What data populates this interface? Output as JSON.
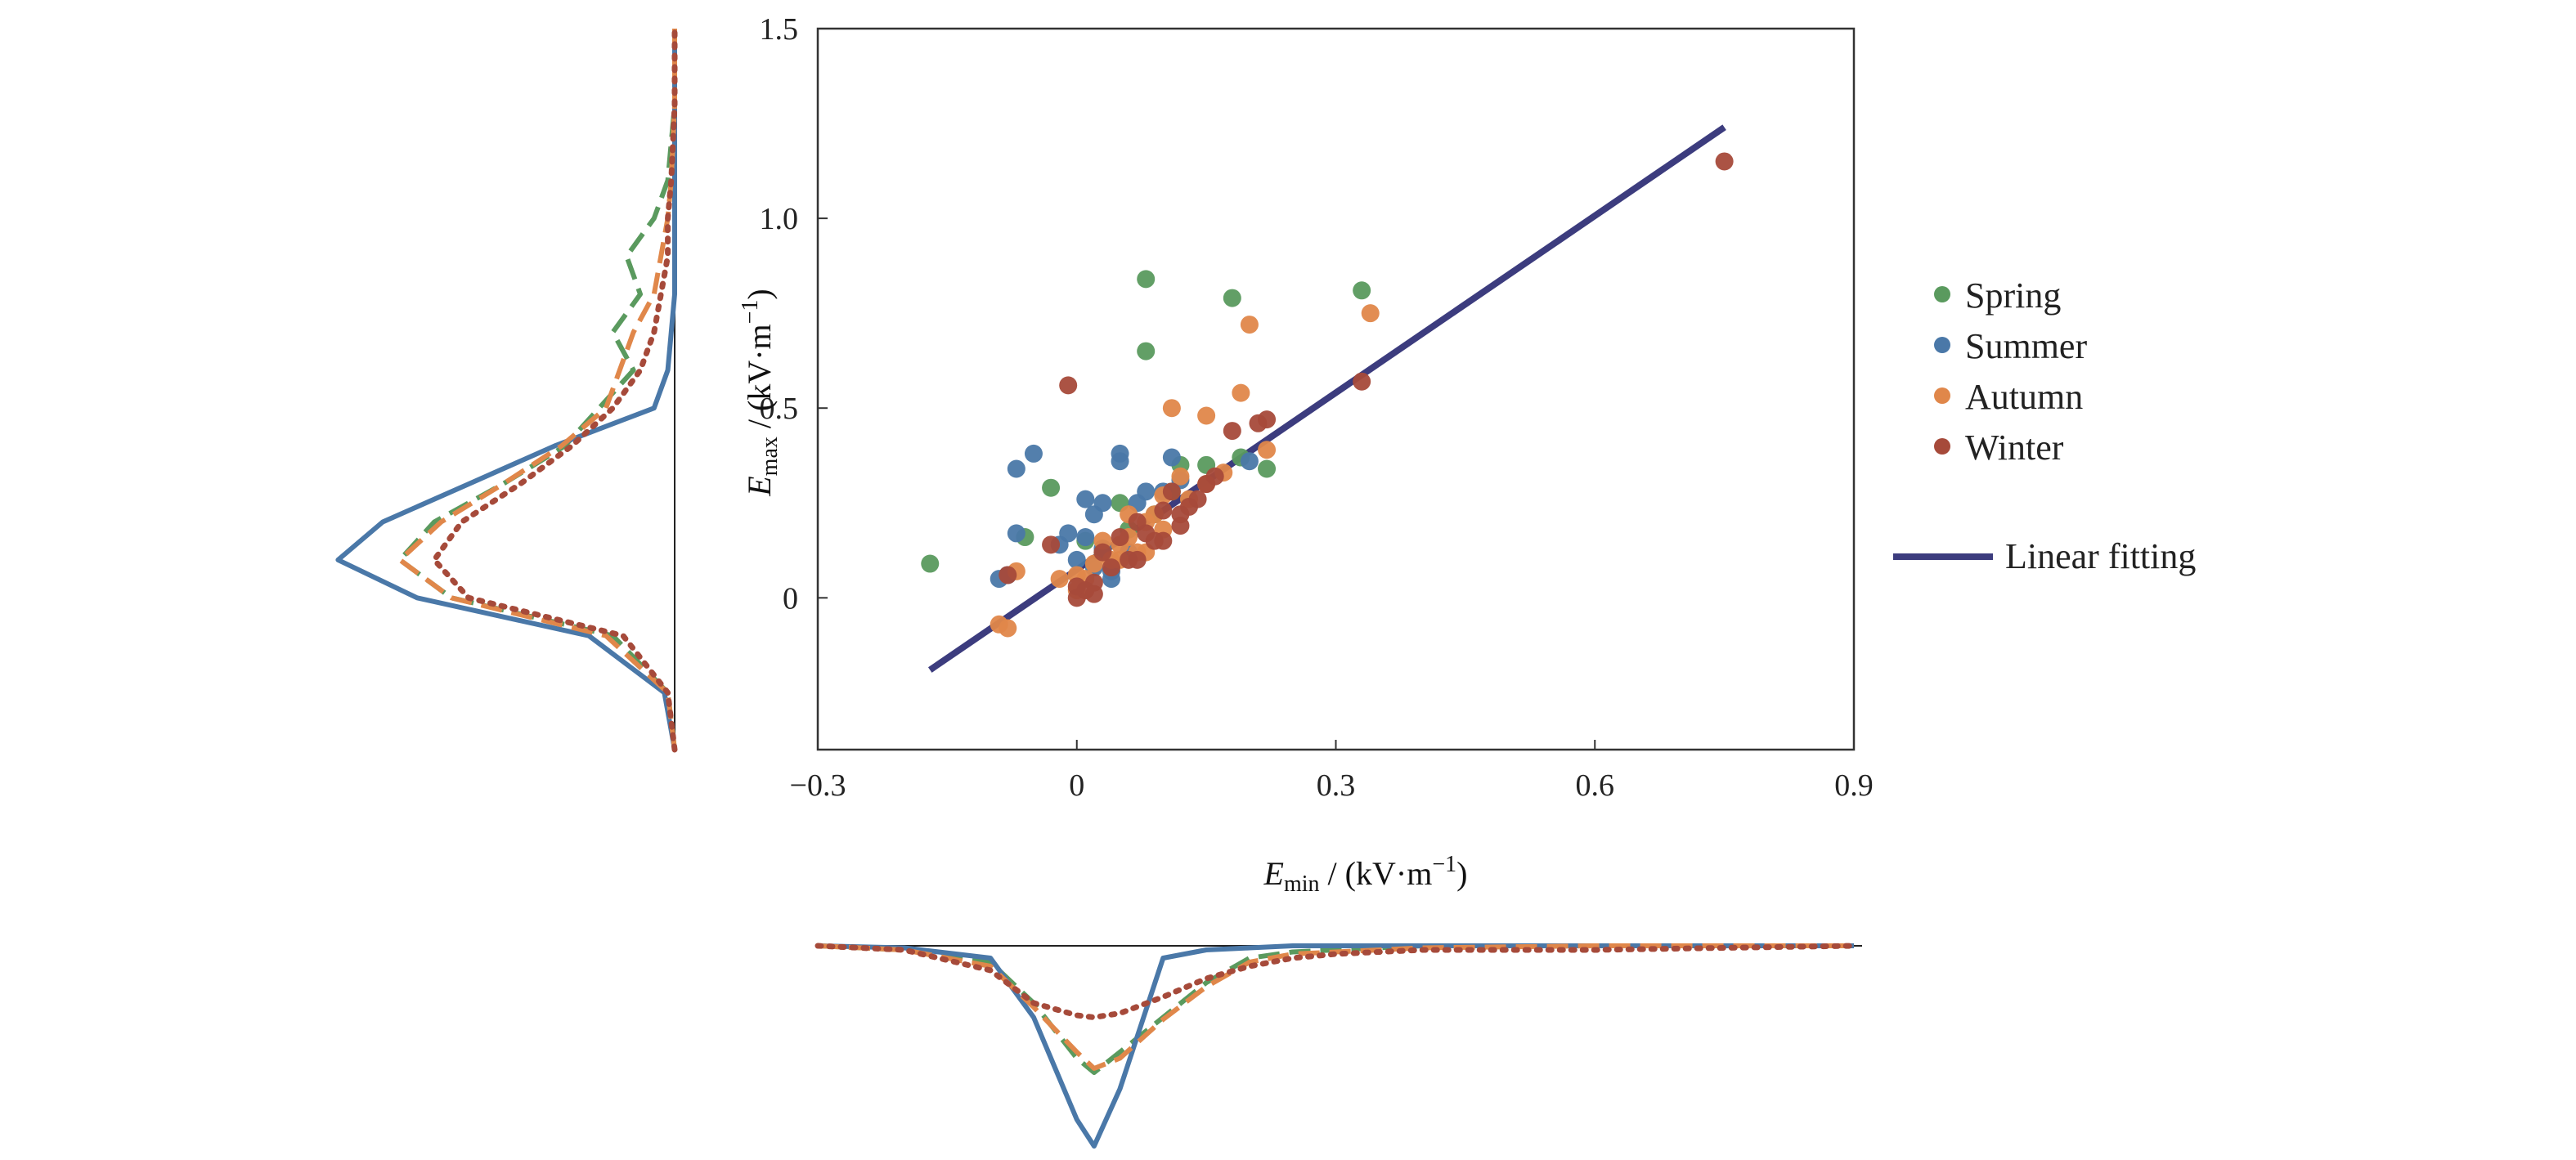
{
  "chart_data": {
    "type": "scatter",
    "x_axis": {
      "var": "E",
      "sub": "min",
      "unit_prefix": " / (kV·m",
      "unit_exp": "−1",
      "unit_suffix": ")",
      "xlim": [
        -0.3,
        0.9
      ],
      "ticks": [
        -0.3,
        0,
        0.3,
        0.6,
        0.9
      ],
      "tick_labels": [
        "−0.3",
        "0",
        "0.3",
        "0.6",
        "0.9"
      ]
    },
    "y_axis": {
      "var": "E",
      "sub": "max",
      "unit_prefix": " / (kV·m",
      "unit_exp": "−1",
      "unit_suffix": ")",
      "ylim": [
        -0.4,
        1.5
      ],
      "ticks": [
        0,
        0.5,
        1.0,
        1.5
      ],
      "tick_labels": [
        "0",
        "0.5",
        "1.0",
        "1.5"
      ]
    },
    "legend_position": "right",
    "series": [
      {
        "name": "Spring",
        "color": "#5a9a5e",
        "points": [
          [
            -0.17,
            0.09
          ],
          [
            -0.06,
            0.16
          ],
          [
            -0.03,
            0.29
          ],
          [
            0.08,
            0.84
          ],
          [
            0.08,
            0.65
          ],
          [
            0.18,
            0.79
          ],
          [
            0.33,
            0.81
          ],
          [
            0.22,
            0.34
          ],
          [
            0.15,
            0.35
          ],
          [
            0.12,
            0.35
          ],
          [
            0.19,
            0.37
          ],
          [
            0.03,
            0.12
          ],
          [
            0.06,
            0.18
          ],
          [
            0.09,
            0.22
          ],
          [
            0.01,
            0.15
          ],
          [
            0.05,
            0.25
          ],
          [
            0.11,
            0.28
          ]
        ]
      },
      {
        "name": "Summer",
        "color": "#4a78a8",
        "points": [
          [
            -0.09,
            0.05
          ],
          [
            -0.08,
            0.06
          ],
          [
            -0.07,
            0.17
          ],
          [
            -0.05,
            0.38
          ],
          [
            -0.07,
            0.34
          ],
          [
            -0.02,
            0.14
          ],
          [
            0.01,
            0.26
          ],
          [
            0.02,
            0.22
          ],
          [
            0.03,
            0.25
          ],
          [
            0.05,
            0.38
          ],
          [
            0.05,
            0.36
          ],
          [
            0.07,
            0.25
          ],
          [
            0.02,
            0.08
          ],
          [
            0.04,
            0.07
          ],
          [
            0.11,
            0.37
          ],
          [
            0.12,
            0.31
          ],
          [
            0.06,
            0.12
          ],
          [
            0.03,
            0.13
          ],
          [
            -0.01,
            0.17
          ],
          [
            0.04,
            0.05
          ],
          [
            0.0,
            0.1
          ],
          [
            0.1,
            0.28
          ],
          [
            0.2,
            0.36
          ],
          [
            0.08,
            0.28
          ],
          [
            0.01,
            0.16
          ]
        ]
      },
      {
        "name": "Autumn",
        "color": "#e0874a",
        "points": [
          [
            -0.09,
            -0.07
          ],
          [
            -0.08,
            -0.08
          ],
          [
            -0.07,
            0.07
          ],
          [
            -0.02,
            0.05
          ],
          [
            0.0,
            0.02
          ],
          [
            0.01,
            0.05
          ],
          [
            0.02,
            0.09
          ],
          [
            0.04,
            0.1
          ],
          [
            0.05,
            0.14
          ],
          [
            0.06,
            0.22
          ],
          [
            0.07,
            0.12
          ],
          [
            0.08,
            0.2
          ],
          [
            0.09,
            0.22
          ],
          [
            0.1,
            0.27
          ],
          [
            0.11,
            0.5
          ],
          [
            0.12,
            0.32
          ],
          [
            0.15,
            0.48
          ],
          [
            0.17,
            0.33
          ],
          [
            0.19,
            0.54
          ],
          [
            0.2,
            0.72
          ],
          [
            0.22,
            0.39
          ],
          [
            0.34,
            0.75
          ],
          [
            0.05,
            0.1
          ],
          [
            0.13,
            0.26
          ],
          [
            0.03,
            0.15
          ],
          [
            0.08,
            0.12
          ],
          [
            0.1,
            0.18
          ],
          [
            0.15,
            0.3
          ],
          [
            0.06,
            0.16
          ],
          [
            0.0,
            0.06
          ]
        ]
      },
      {
        "name": "Winter",
        "color": "#a64a3a",
        "points": [
          [
            -0.01,
            0.56
          ],
          [
            -0.08,
            0.06
          ],
          [
            -0.03,
            0.14
          ],
          [
            0.0,
            0.0
          ],
          [
            0.01,
            0.02
          ],
          [
            0.02,
            0.04
          ],
          [
            0.03,
            0.12
          ],
          [
            0.05,
            0.16
          ],
          [
            0.06,
            0.1
          ],
          [
            0.07,
            0.2
          ],
          [
            0.08,
            0.17
          ],
          [
            0.09,
            0.15
          ],
          [
            0.1,
            0.23
          ],
          [
            0.11,
            0.28
          ],
          [
            0.12,
            0.22
          ],
          [
            0.13,
            0.24
          ],
          [
            0.14,
            0.26
          ],
          [
            0.15,
            0.3
          ],
          [
            0.16,
            0.32
          ],
          [
            0.18,
            0.44
          ],
          [
            0.21,
            0.46
          ],
          [
            0.22,
            0.47
          ],
          [
            0.33,
            0.57
          ],
          [
            0.75,
            1.15
          ],
          [
            0.04,
            0.08
          ],
          [
            0.07,
            0.1
          ],
          [
            0.1,
            0.15
          ],
          [
            0.12,
            0.19
          ],
          [
            0.0,
            0.03
          ],
          [
            0.02,
            0.01
          ]
        ]
      }
    ],
    "fit_line": {
      "name": "Linear fitting",
      "color": "#3c3c7e",
      "x": [
        -0.17,
        0.75
      ],
      "y": [
        -0.19,
        1.24
      ]
    },
    "x_marginal": {
      "x": [
        -0.3,
        -0.2,
        -0.1,
        -0.05,
        0.0,
        0.02,
        0.05,
        0.1,
        0.15,
        0.2,
        0.25,
        0.3,
        0.4,
        0.6,
        0.9
      ],
      "densities": [
        {
          "series": "Spring",
          "color": "#5a9a5e",
          "style": "dashed",
          "values": [
            0.0,
            0.02,
            0.08,
            0.28,
            0.55,
            0.62,
            0.52,
            0.35,
            0.18,
            0.06,
            0.03,
            0.02,
            0.0,
            0.0,
            0.0
          ]
        },
        {
          "series": "Summer",
          "color": "#4a78a8",
          "style": "solid",
          "values": [
            0.0,
            0.01,
            0.06,
            0.35,
            0.85,
            0.98,
            0.7,
            0.06,
            0.02,
            0.01,
            0.0,
            0.0,
            0.0,
            0.0,
            0.0
          ]
        },
        {
          "series": "Autumn",
          "color": "#e0874a",
          "style": "dashed",
          "values": [
            0.0,
            0.02,
            0.1,
            0.3,
            0.52,
            0.6,
            0.55,
            0.36,
            0.2,
            0.08,
            0.04,
            0.03,
            0.01,
            0.0,
            0.0
          ]
        },
        {
          "series": "Winter",
          "color": "#a64a3a",
          "style": "dotted",
          "values": [
            0.0,
            0.02,
            0.12,
            0.28,
            0.34,
            0.35,
            0.33,
            0.25,
            0.16,
            0.1,
            0.06,
            0.04,
            0.02,
            0.02,
            0.0
          ]
        }
      ]
    },
    "y_marginal": {
      "y": [
        -0.4,
        -0.25,
        -0.1,
        0.0,
        0.1,
        0.2,
        0.3,
        0.4,
        0.5,
        0.6,
        0.7,
        0.8,
        0.9,
        1.0,
        1.1,
        1.3,
        1.5
      ],
      "densities": [
        {
          "series": "Spring",
          "color": "#5a9a5e",
          "style": "dashed",
          "values": [
            0.0,
            0.02,
            0.18,
            0.65,
            0.8,
            0.7,
            0.5,
            0.32,
            0.22,
            0.12,
            0.18,
            0.1,
            0.14,
            0.06,
            0.02,
            0.0,
            0.0
          ]
        },
        {
          "series": "Summer",
          "color": "#4a78a8",
          "style": "solid",
          "values": [
            0.0,
            0.03,
            0.25,
            0.75,
            0.98,
            0.85,
            0.6,
            0.35,
            0.06,
            0.02,
            0.01,
            0.0,
            0.0,
            0.0,
            0.0,
            0.0,
            0.0
          ]
        },
        {
          "series": "Autumn",
          "color": "#e0874a",
          "style": "dashed",
          "values": [
            0.0,
            0.02,
            0.2,
            0.65,
            0.8,
            0.68,
            0.5,
            0.33,
            0.2,
            0.16,
            0.12,
            0.06,
            0.04,
            0.02,
            0.01,
            0.0,
            0.0
          ]
        },
        {
          "series": "Winter",
          "color": "#a64a3a",
          "style": "dotted",
          "values": [
            0.0,
            0.02,
            0.15,
            0.6,
            0.7,
            0.62,
            0.45,
            0.3,
            0.18,
            0.1,
            0.06,
            0.04,
            0.02,
            0.02,
            0.01,
            0.0,
            0.0
          ]
        }
      ]
    }
  }
}
